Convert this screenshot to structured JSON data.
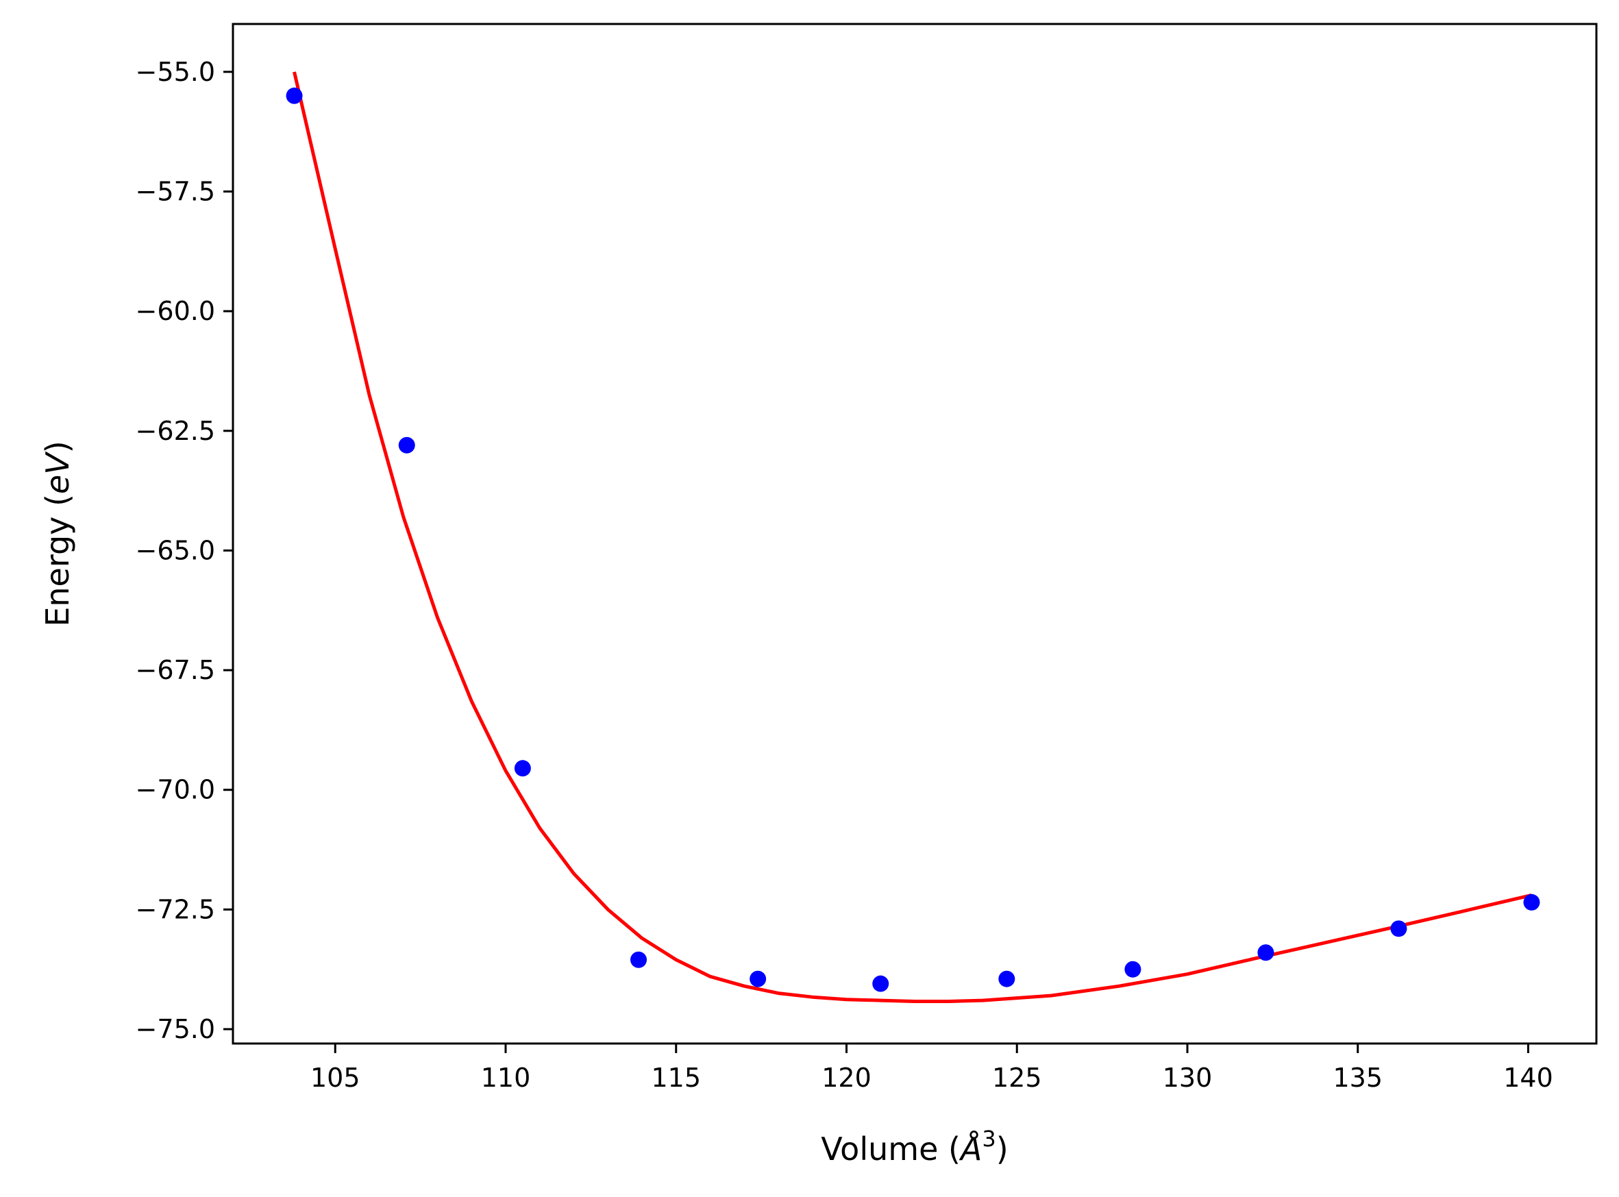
{
  "chart_data": {
    "type": "scatter",
    "title": "",
    "xlabel": "Volume (Å³)",
    "ylabel": "Energy (eV)",
    "xlabel_parts": {
      "pre": "Volume (",
      "var": "Å",
      "sup": "3",
      "post": ")"
    },
    "ylabel_parts": {
      "pre": "Energy (",
      "var": "eV",
      "post": ")"
    },
    "xlim": [
      102.0,
      142.0
    ],
    "ylim": [
      -75.3,
      -54.0
    ],
    "xticks": [
      105,
      110,
      115,
      120,
      125,
      130,
      135,
      140
    ],
    "xtick_labels": [
      "105",
      "110",
      "115",
      "120",
      "125",
      "130",
      "135",
      "140"
    ],
    "yticks": [
      -55.0,
      -57.5,
      -60.0,
      -62.5,
      -65.0,
      -67.5,
      -70.0,
      -72.5,
      -75.0
    ],
    "ytick_labels": [
      "−55.0",
      "−57.5",
      "−60.0",
      "−62.5",
      "−65.0",
      "−67.5",
      "−70.0",
      "−72.5",
      "−75.0"
    ],
    "grid": false,
    "series": [
      {
        "kind": "scatter",
        "color": "#0000ff",
        "x": [
          103.8,
          107.1,
          110.5,
          113.9,
          117.4,
          121.0,
          124.7,
          128.4,
          132.3,
          136.2,
          140.1
        ],
        "y": [
          -55.5,
          -62.8,
          -69.55,
          -73.55,
          -73.95,
          -74.05,
          -73.95,
          -73.75,
          -73.4,
          -72.9,
          -72.35
        ]
      },
      {
        "kind": "line",
        "color": "#ff0000",
        "x": [
          103.8,
          105.0,
          106.0,
          107.0,
          108.0,
          109.0,
          110.0,
          111.0,
          112.0,
          113.0,
          114.0,
          115.0,
          116.0,
          117.0,
          118.0,
          119.0,
          120.0,
          121.0,
          122.0,
          123.0,
          124.0,
          126.0,
          128.0,
          130.0,
          132.0,
          134.0,
          136.0,
          138.0,
          140.1
        ],
        "y": [
          -55.0,
          -58.7,
          -61.75,
          -64.3,
          -66.4,
          -68.15,
          -69.6,
          -70.8,
          -71.75,
          -72.5,
          -73.1,
          -73.55,
          -73.9,
          -74.1,
          -74.25,
          -74.33,
          -74.38,
          -74.4,
          -74.42,
          -74.42,
          -74.4,
          -74.3,
          -74.1,
          -73.85,
          -73.52,
          -73.2,
          -72.88,
          -72.55,
          -72.2
        ]
      }
    ]
  }
}
